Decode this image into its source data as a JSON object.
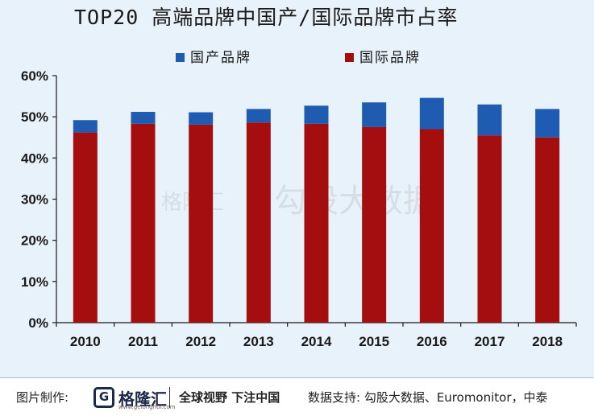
{
  "title": "TOP20 高端品牌中国产/国际品牌市占率",
  "chart_data": {
    "type": "bar",
    "stacked": true,
    "categories": [
      "2010",
      "2011",
      "2012",
      "2013",
      "2014",
      "2015",
      "2016",
      "2017",
      "2018"
    ],
    "series": [
      {
        "name": "国际品牌",
        "color": "#a50e0e",
        "values": [
          46.2,
          48.3,
          48.1,
          48.6,
          48.3,
          47.5,
          47.0,
          45.5,
          45.0
        ]
      },
      {
        "name": "国产品牌",
        "color": "#1f5bb0",
        "values": [
          3.0,
          2.9,
          3.0,
          3.3,
          4.4,
          6.0,
          7.6,
          7.5,
          6.9
        ]
      }
    ],
    "legend_order": [
      "国产品牌",
      "国际品牌"
    ],
    "legend_position": "top",
    "ylim": [
      0,
      60
    ],
    "yticks": [
      "0%",
      "10%",
      "20%",
      "30%",
      "40%",
      "50%",
      "60%"
    ],
    "xlabel": "",
    "ylabel": "",
    "grid": false
  },
  "watermark": {
    "brand": "格隆汇",
    "text": "勾股大数据"
  },
  "footer": {
    "made_by_label": "图片制作:",
    "logo_char": "G",
    "logo_text": "格隆汇",
    "logo_sub": "www.gelonghui.com",
    "slogan": "全球视野 下注中国",
    "source": "数据支持: 勾股大数据、Euromonitor，中泰"
  }
}
